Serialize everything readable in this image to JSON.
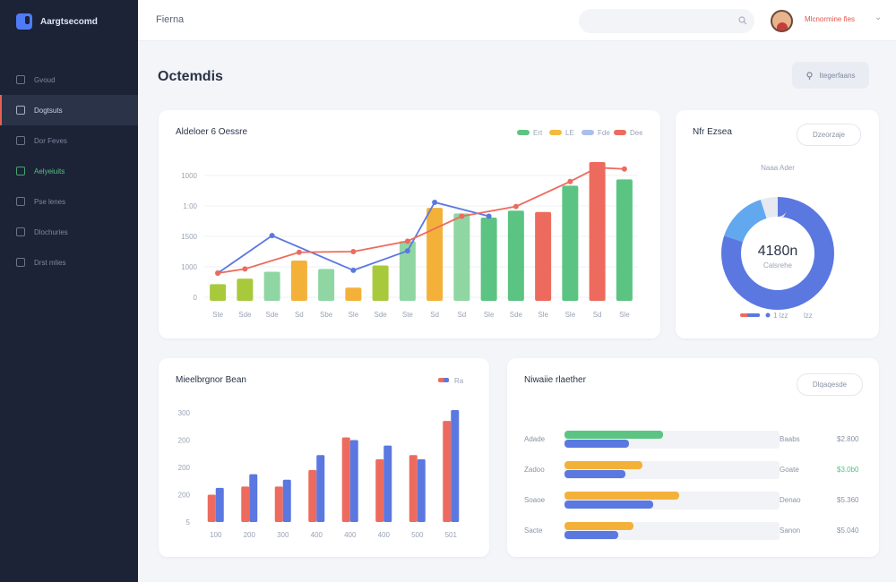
{
  "app": {
    "brand": "Aargtsecomd"
  },
  "sidebar": {
    "items": [
      {
        "label": "Gvoud",
        "icon": "home-icon"
      },
      {
        "label": "Dogtsuts",
        "icon": "dashboard-icon",
        "active": true
      },
      {
        "label": "Dor Feves",
        "icon": "grid-icon"
      },
      {
        "label": "Aelyeiuits",
        "icon": "analytics-icon",
        "highlight": true
      },
      {
        "label": "Pse lenes",
        "icon": "list-icon"
      },
      {
        "label": "Dlochuries",
        "icon": "calendar-icon"
      },
      {
        "label": "Drst mlies",
        "icon": "settings-icon"
      }
    ]
  },
  "header": {
    "title": "Fierna",
    "search_placeholder": "",
    "user_name": "Mlcnormine fies"
  },
  "main": {
    "page_title": "Octemdis",
    "action_label": "Itegerfaans"
  },
  "combo_card": {
    "title": "Aldeloer 6 Oessre",
    "legend": [
      "Ert",
      "LE",
      "Fde",
      "Dee"
    ],
    "colors": {
      "green": "#5cc482",
      "yellow": "#f3bb3d",
      "lime": "#a8c93c",
      "lightgreen": "#8fd6a3",
      "red": "#ed6b5e",
      "blue": "#5b78e0",
      "orange": "#f4b13a"
    }
  },
  "donut_card": {
    "title": "Nfr Ezsea",
    "button": "Dzeorzaje",
    "caption": "Naaa Ader",
    "value": "4180n",
    "sub": "Calsrehe",
    "legend": [
      "1 lzz",
      "lzz"
    ]
  },
  "bar_card": {
    "title": "Mieelbrgnor Bean",
    "legend": "Ra"
  },
  "progress_card": {
    "title": "Niwaiie rlaether",
    "button": "Dlqaqesde",
    "rows": [
      {
        "label": "Adade",
        "mid": "Baabs",
        "value": "$2.800",
        "value_color": "#8a93a6",
        "top": 0.73,
        "bottom": 0.48
      },
      {
        "label": "Zadoo",
        "mid": "Goate",
        "value": "$3.0b0",
        "value_color": "#53c27d",
        "top": 0.58,
        "bottom": 0.45
      },
      {
        "label": "Soaoe",
        "mid": "Denao",
        "value": "$5.360",
        "value_color": "#8a93a6",
        "top": 0.85,
        "bottom": 0.66
      },
      {
        "label": "Sacte",
        "mid": "Sanon",
        "value": "$5.040",
        "value_color": "#8a93a6",
        "top": 0.51,
        "bottom": 0.4
      }
    ]
  },
  "chart_data": [
    {
      "type": "bar",
      "categories": [
        "Ste",
        "Sde",
        "Sde",
        "Sd",
        "Sbe",
        "Sle",
        "Sde",
        "Ste",
        "Sd",
        "Sd",
        "Sle",
        "Sde",
        "Sle",
        "Sle",
        "Sd",
        "Sle"
      ],
      "yticks": [
        "1000",
        "1:00",
        "1500",
        "1000",
        "0"
      ],
      "ylim": [
        0,
        1000
      ],
      "series": [
        {
          "kind": "bar",
          "values": [
            120,
            160,
            210,
            290,
            230,
            95,
            255,
            430,
            670,
            630,
            600,
            650,
            640,
            830,
            1000,
            875
          ],
          "colors": [
            "lime",
            "lime",
            "lightgreen",
            "orange",
            "lightgreen",
            "orange",
            "lime",
            "lightgreen",
            "orange",
            "lightgreen",
            "green",
            "green",
            "red",
            "green",
            "red",
            "green"
          ]
        },
        {
          "kind": "line",
          "color": "blue",
          "values": [
            null,
            null,
            470,
            null,
            null,
            220,
            null,
            null,
            710,
            null,
            null,
            null,
            null,
            null,
            null,
            null
          ],
          "points": [
            [
              0,
              200
            ],
            [
              2,
              470
            ],
            [
              5,
              220
            ],
            [
              7,
              360
            ],
            [
              8,
              710
            ],
            [
              10,
              610
            ]
          ]
        },
        {
          "kind": "line",
          "color": "red",
          "points": [
            [
              0,
              200
            ],
            [
              1,
              230
            ],
            [
              3,
              350
            ],
            [
              5,
              355
            ],
            [
              7,
              430
            ],
            [
              9,
              610
            ],
            [
              11,
              680
            ],
            [
              13,
              860
            ],
            [
              14,
              960
            ],
            [
              15,
              950
            ]
          ]
        }
      ]
    },
    {
      "type": "pie",
      "values": [
        80,
        15,
        5
      ],
      "colors": [
        "#5b78e0",
        "#62a8ee",
        "#e6e9ef"
      ],
      "center": "4180n"
    },
    {
      "type": "bar",
      "categories": [
        "100",
        "200",
        "300",
        "400",
        "400",
        "400",
        "500",
        "501"
      ],
      "yticks": [
        "300",
        "200",
        "200",
        "200",
        "5"
      ],
      "ylim": [
        0,
        400
      ],
      "series": [
        {
          "name": "red",
          "color": "#ed6b5e",
          "values": [
            100,
            130,
            130,
            190,
            310,
            230,
            245,
            370
          ]
        },
        {
          "name": "blue",
          "color": "#5b78e0",
          "values": [
            125,
            175,
            155,
            245,
            300,
            280,
            230,
            410
          ]
        }
      ]
    }
  ]
}
